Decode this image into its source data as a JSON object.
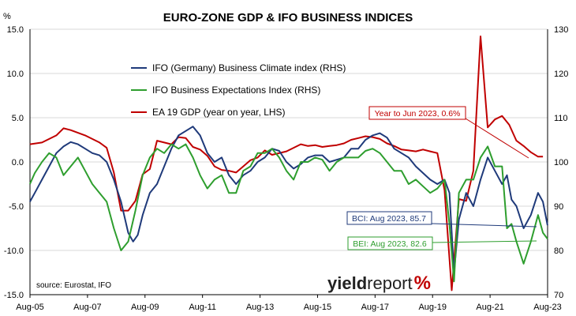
{
  "chart_data": {
    "type": "line",
    "title": "EURO-ZONE GDP & IFO BUSINESS INDICES",
    "source": "source: Eurostat, IFO",
    "logo": {
      "part1": "yield",
      "part2": "report",
      "part3": "%"
    },
    "x_labels": [
      "Aug-05",
      "Aug-07",
      "Aug-09",
      "Aug-11",
      "Aug-13",
      "Aug-15",
      "Aug-17",
      "Aug-19",
      "Aug-21",
      "Aug-23"
    ],
    "x_range": [
      2005.583,
      2023.583
    ],
    "left_axis": {
      "ticks": [
        "15.0",
        "10.0",
        "5.0",
        "0.0",
        "-5.0",
        "-10.0",
        "-15.0"
      ],
      "values": [
        15,
        10,
        5,
        0,
        -5,
        -10,
        -15
      ],
      "range": [
        -15,
        15
      ],
      "unit": "%"
    },
    "right_axis": {
      "ticks": [
        "130",
        "120",
        "110",
        "100",
        "90",
        "80",
        "70"
      ],
      "values": [
        130,
        120,
        110,
        100,
        90,
        80,
        70
      ],
      "range": [
        70,
        130
      ]
    },
    "grid": "horizontal",
    "colors": {
      "gdp": "#c00000",
      "bci": "#1f3a7a",
      "bei": "#2e9e2e"
    },
    "series": [
      {
        "name": "IFO (Germany) Business Climate index (RHS)",
        "axis": "right",
        "color": "#1f3a7a",
        "points": [
          [
            2005.58,
            91
          ],
          [
            2005.75,
            93
          ],
          [
            2006.0,
            96
          ],
          [
            2006.25,
            99
          ],
          [
            2006.5,
            102
          ],
          [
            2006.75,
            103.5
          ],
          [
            2007.0,
            104.5
          ],
          [
            2007.25,
            104
          ],
          [
            2007.5,
            103
          ],
          [
            2007.75,
            102
          ],
          [
            2008.0,
            101.5
          ],
          [
            2008.25,
            100
          ],
          [
            2008.5,
            96
          ],
          [
            2008.75,
            91
          ],
          [
            2009.0,
            84
          ],
          [
            2009.17,
            82
          ],
          [
            2009.33,
            83.5
          ],
          [
            2009.5,
            88
          ],
          [
            2009.75,
            93
          ],
          [
            2010.0,
            95
          ],
          [
            2010.25,
            99
          ],
          [
            2010.5,
            103
          ],
          [
            2010.75,
            106
          ],
          [
            2011.0,
            107
          ],
          [
            2011.25,
            108
          ],
          [
            2011.5,
            106
          ],
          [
            2011.75,
            102
          ],
          [
            2012.0,
            100
          ],
          [
            2012.25,
            101
          ],
          [
            2012.5,
            97
          ],
          [
            2012.75,
            95
          ],
          [
            2013.0,
            97
          ],
          [
            2013.25,
            98
          ],
          [
            2013.5,
            100
          ],
          [
            2013.75,
            101
          ],
          [
            2014.0,
            103
          ],
          [
            2014.25,
            102.5
          ],
          [
            2014.5,
            100
          ],
          [
            2014.75,
            98.5
          ],
          [
            2015.0,
            99.5
          ],
          [
            2015.25,
            101
          ],
          [
            2015.5,
            101.5
          ],
          [
            2015.75,
            101.5
          ],
          [
            2016.0,
            100
          ],
          [
            2016.25,
            100.5
          ],
          [
            2016.5,
            101
          ],
          [
            2016.75,
            103
          ],
          [
            2017.0,
            103
          ],
          [
            2017.25,
            105
          ],
          [
            2017.5,
            106
          ],
          [
            2017.75,
            106.5
          ],
          [
            2018.0,
            105.5
          ],
          [
            2018.25,
            103
          ],
          [
            2018.5,
            102
          ],
          [
            2018.75,
            101
          ],
          [
            2019.0,
            99
          ],
          [
            2019.25,
            97.5
          ],
          [
            2019.5,
            96
          ],
          [
            2019.75,
            95
          ],
          [
            2020.0,
            96
          ],
          [
            2020.17,
            93
          ],
          [
            2020.33,
            75
          ],
          [
            2020.5,
            87
          ],
          [
            2020.75,
            93
          ],
          [
            2021.0,
            90
          ],
          [
            2021.25,
            96
          ],
          [
            2021.5,
            101
          ],
          [
            2021.75,
            98
          ],
          [
            2022.0,
            95
          ],
          [
            2022.17,
            97
          ],
          [
            2022.33,
            91.5
          ],
          [
            2022.5,
            90
          ],
          [
            2022.75,
            85
          ],
          [
            2023.0,
            88
          ],
          [
            2023.25,
            93
          ],
          [
            2023.42,
            91
          ],
          [
            2023.58,
            85.7
          ]
        ]
      },
      {
        "name": "IFO Business Expectations Index (RHS)",
        "axis": "right",
        "color": "#2e9e2e",
        "points": [
          [
            2005.58,
            95
          ],
          [
            2005.75,
            97.5
          ],
          [
            2006.0,
            100
          ],
          [
            2006.25,
            102
          ],
          [
            2006.5,
            101
          ],
          [
            2006.75,
            97
          ],
          [
            2007.0,
            99
          ],
          [
            2007.25,
            101
          ],
          [
            2007.5,
            98
          ],
          [
            2007.75,
            95
          ],
          [
            2008.0,
            93
          ],
          [
            2008.25,
            91
          ],
          [
            2008.5,
            85
          ],
          [
            2008.75,
            80
          ],
          [
            2009.0,
            82
          ],
          [
            2009.25,
            89
          ],
          [
            2009.5,
            97
          ],
          [
            2009.75,
            101
          ],
          [
            2010.0,
            103
          ],
          [
            2010.25,
            102
          ],
          [
            2010.5,
            104
          ],
          [
            2010.75,
            103
          ],
          [
            2011.0,
            104
          ],
          [
            2011.25,
            101
          ],
          [
            2011.5,
            97
          ],
          [
            2011.75,
            94
          ],
          [
            2012.0,
            96
          ],
          [
            2012.25,
            97
          ],
          [
            2012.5,
            93
          ],
          [
            2012.75,
            93
          ],
          [
            2013.0,
            98
          ],
          [
            2013.25,
            99
          ],
          [
            2013.5,
            102
          ],
          [
            2013.75,
            102
          ],
          [
            2014.0,
            103
          ],
          [
            2014.25,
            101
          ],
          [
            2014.5,
            98
          ],
          [
            2014.75,
            96
          ],
          [
            2015.0,
            100
          ],
          [
            2015.25,
            100
          ],
          [
            2015.5,
            101
          ],
          [
            2015.75,
            100.5
          ],
          [
            2016.0,
            98
          ],
          [
            2016.25,
            100
          ],
          [
            2016.5,
            101
          ],
          [
            2016.75,
            101
          ],
          [
            2017.0,
            101
          ],
          [
            2017.25,
            102.5
          ],
          [
            2017.5,
            103
          ],
          [
            2017.75,
            102
          ],
          [
            2018.0,
            100
          ],
          [
            2018.25,
            98
          ],
          [
            2018.5,
            98
          ],
          [
            2018.75,
            95
          ],
          [
            2019.0,
            96
          ],
          [
            2019.25,
            94.5
          ],
          [
            2019.5,
            93
          ],
          [
            2019.75,
            94
          ],
          [
            2020.0,
            96
          ],
          [
            2020.17,
            86
          ],
          [
            2020.33,
            73
          ],
          [
            2020.5,
            93
          ],
          [
            2020.75,
            96
          ],
          [
            2021.0,
            96
          ],
          [
            2021.25,
            101
          ],
          [
            2021.5,
            103.5
          ],
          [
            2021.75,
            99
          ],
          [
            2022.0,
            99
          ],
          [
            2022.17,
            85
          ],
          [
            2022.33,
            86
          ],
          [
            2022.5,
            82
          ],
          [
            2022.75,
            77
          ],
          [
            2023.0,
            82
          ],
          [
            2023.25,
            88
          ],
          [
            2023.42,
            84
          ],
          [
            2023.58,
            82.6
          ]
        ]
      },
      {
        "name": "EA 19 GDP (year on year, LHS)",
        "axis": "left",
        "color": "#c00000",
        "points": [
          [
            2005.58,
            2.0
          ],
          [
            2006.0,
            2.2
          ],
          [
            2006.5,
            3.0
          ],
          [
            2006.75,
            3.8
          ],
          [
            2007.0,
            3.6
          ],
          [
            2007.5,
            3.0
          ],
          [
            2007.75,
            2.6
          ],
          [
            2008.0,
            2.2
          ],
          [
            2008.25,
            1.6
          ],
          [
            2008.5,
            -1.2
          ],
          [
            2008.75,
            -5.5
          ],
          [
            2009.0,
            -5.5
          ],
          [
            2009.25,
            -4.4
          ],
          [
            2009.5,
            -1.4
          ],
          [
            2009.75,
            -0.8
          ],
          [
            2010.0,
            2.4
          ],
          [
            2010.25,
            2.2
          ],
          [
            2010.5,
            2.0
          ],
          [
            2010.75,
            2.8
          ],
          [
            2011.0,
            2.7
          ],
          [
            2011.25,
            1.7
          ],
          [
            2011.5,
            1.4
          ],
          [
            2011.75,
            0.7
          ],
          [
            2012.0,
            -0.5
          ],
          [
            2012.25,
            -0.9
          ],
          [
            2012.5,
            -1.0
          ],
          [
            2012.75,
            -1.2
          ],
          [
            2013.0,
            -0.5
          ],
          [
            2013.25,
            0.2
          ],
          [
            2013.5,
            0.5
          ],
          [
            2013.75,
            1.3
          ],
          [
            2014.0,
            0.8
          ],
          [
            2014.5,
            1.2
          ],
          [
            2014.75,
            1.6
          ],
          [
            2015.0,
            2.0
          ],
          [
            2015.25,
            1.8
          ],
          [
            2015.5,
            1.9
          ],
          [
            2015.75,
            1.7
          ],
          [
            2016.0,
            1.8
          ],
          [
            2016.25,
            1.9
          ],
          [
            2016.5,
            2.1
          ],
          [
            2016.75,
            2.5
          ],
          [
            2017.0,
            2.7
          ],
          [
            2017.25,
            2.9
          ],
          [
            2017.5,
            2.8
          ],
          [
            2017.75,
            2.6
          ],
          [
            2018.0,
            2.1
          ],
          [
            2018.25,
            1.8
          ],
          [
            2018.5,
            1.4
          ],
          [
            2018.75,
            1.3
          ],
          [
            2019.0,
            1.2
          ],
          [
            2019.25,
            1.4
          ],
          [
            2019.5,
            1.2
          ],
          [
            2019.75,
            1.0
          ],
          [
            2020.0,
            -3.2
          ],
          [
            2020.25,
            -14.5
          ],
          [
            2020.5,
            -4.2
          ],
          [
            2020.75,
            -4.4
          ],
          [
            2021.0,
            -1.0
          ],
          [
            2021.25,
            14.2
          ],
          [
            2021.5,
            3.9
          ],
          [
            2021.75,
            4.8
          ],
          [
            2022.0,
            5.2
          ],
          [
            2022.25,
            4.2
          ],
          [
            2022.5,
            2.4
          ],
          [
            2022.75,
            1.8
          ],
          [
            2023.0,
            1.1
          ],
          [
            2023.25,
            0.6
          ],
          [
            2023.42,
            0.6
          ]
        ]
      }
    ],
    "annotations": {
      "gdp": "Year to Jun 2023, 0.6%",
      "bci": "BCI: Aug 2023, 85.7",
      "bei": "BEI: Aug 2023, 82.6"
    }
  }
}
